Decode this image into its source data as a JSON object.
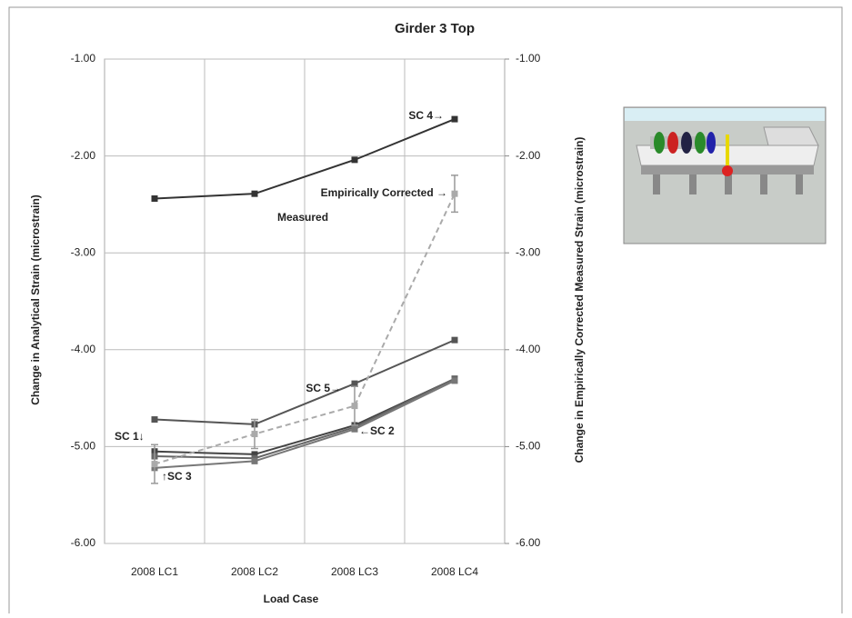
{
  "chart_data": {
    "type": "line",
    "title": "Girder 3 Top",
    "x_label": "Load Case",
    "y_label": "Change in Analytical Strain (microstrain)",
    "y2_label": "Change in Empirically Corrected Measured Strain (microstrain)",
    "categories": [
      "2008 LC1",
      "2008 LC2",
      "2008 LC3",
      "2008 LC4"
    ],
    "ylim": [
      -6,
      -1
    ],
    "yticks": [
      {
        "value": -1,
        "label": "-1.00"
      },
      {
        "value": -2,
        "label": "-2.00"
      },
      {
        "value": -3,
        "label": "-3.00"
      },
      {
        "value": -4,
        "label": "-4.00"
      },
      {
        "value": -5,
        "label": "-5.00"
      },
      {
        "value": -6,
        "label": "-6.00"
      }
    ],
    "y2lim": [
      -6,
      -1
    ],
    "y2ticks": [
      {
        "value": -1,
        "label": "-1.00"
      },
      {
        "value": -2,
        "label": "-2.00"
      },
      {
        "value": -3,
        "label": "-3.00"
      },
      {
        "value": -4,
        "label": "-4.00"
      },
      {
        "value": -5,
        "label": "-5.00"
      },
      {
        "value": -6,
        "label": "-6.00"
      }
    ],
    "grid": true,
    "series": [
      {
        "name": "SC 4",
        "color": "#333333",
        "values": [
          -2.44,
          -2.39,
          -2.04,
          -1.62
        ]
      },
      {
        "name": "SC 5",
        "color": "#555555",
        "values": [
          -4.72,
          -4.77,
          -4.35,
          -3.9
        ]
      },
      {
        "name": "SC 1",
        "color": "#444444",
        "values": [
          -5.05,
          -5.08,
          -4.78,
          -4.3
        ]
      },
      {
        "name": "SC 2",
        "color": "#666666",
        "values": [
          -5.1,
          -5.12,
          -4.8,
          -4.3
        ]
      },
      {
        "name": "SC 3",
        "color": "#777777",
        "values": [
          -5.22,
          -5.15,
          -4.82,
          -4.32
        ]
      },
      {
        "name": "Measured",
        "color": "#aaaaaa",
        "dashed": true,
        "axis": "y2",
        "values": [
          -5.18,
          -4.87,
          -4.58,
          -2.39
        ],
        "errors": [
          0.2,
          0.15,
          0.2,
          0.19
        ]
      }
    ],
    "annotations": [
      {
        "text": "SC 4→"
      },
      {
        "text": "Empirically Corrected →"
      },
      {
        "text": "Measured"
      },
      {
        "text": "SC 5→"
      },
      {
        "text": "SC 1↓"
      },
      {
        "text": "↑SC 3"
      },
      {
        "text": "←SC 2"
      }
    ]
  }
}
